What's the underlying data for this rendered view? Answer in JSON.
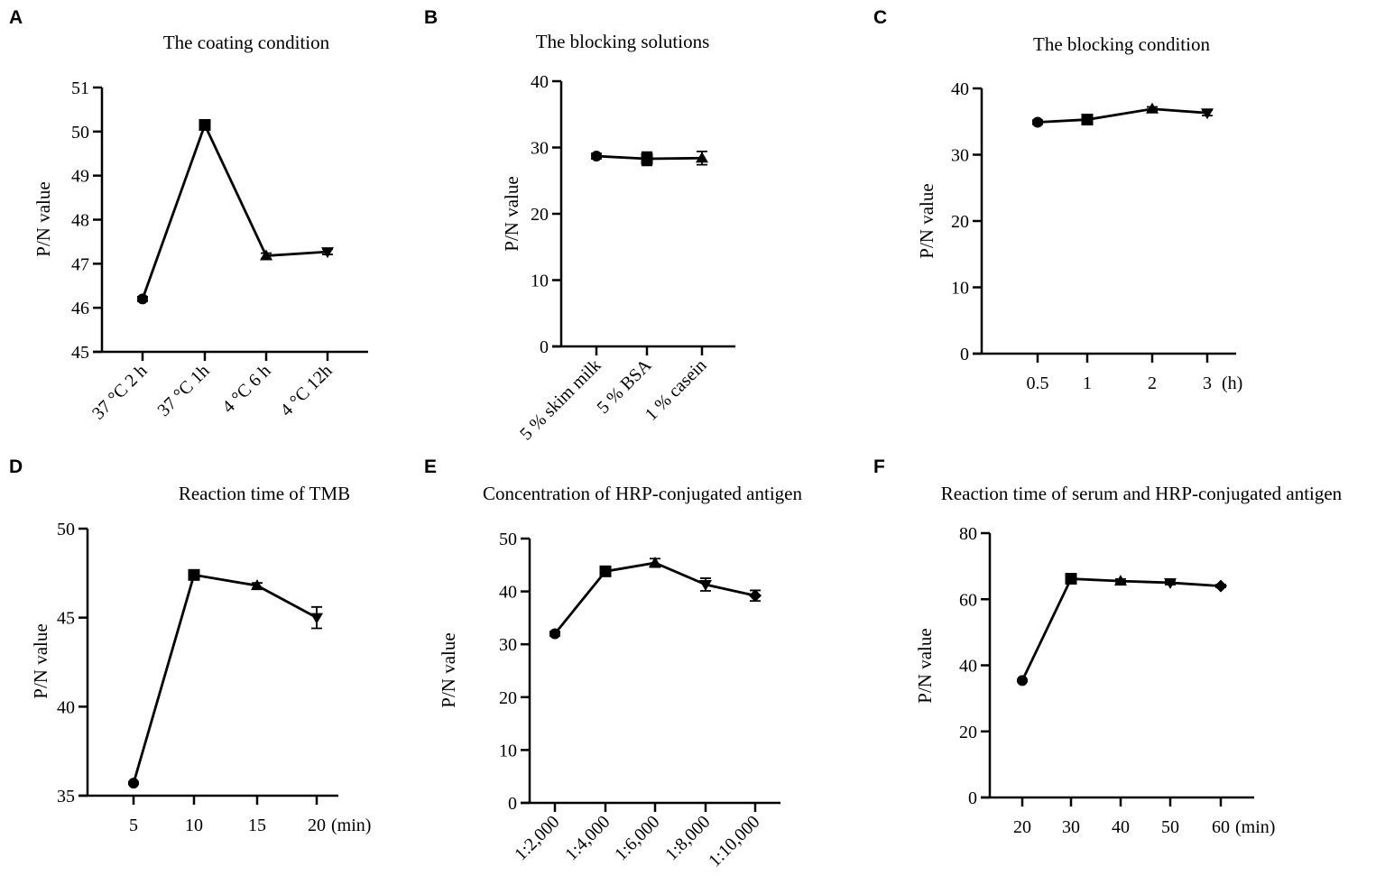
{
  "chart_data": [
    {
      "panel": "A",
      "type": "line",
      "title": "The coating condition",
      "ylabel": "P/N value",
      "xlabel": "",
      "unit": "",
      "categories": [
        "37 °C 2 h",
        "37 °C 1h",
        "4 °C 6 h",
        "4 °C 12h"
      ],
      "values": [
        46.2,
        50.15,
        47.18,
        47.27
      ],
      "errors": [
        0.05,
        0.05,
        0.06,
        0.06
      ],
      "markers": [
        "circle",
        "square",
        "triangle-up",
        "triangle-down"
      ],
      "ylim": [
        45,
        51
      ],
      "yticks": [
        45,
        46,
        47,
        48,
        49,
        50,
        51
      ]
    },
    {
      "panel": "B",
      "type": "line",
      "title": "The blocking solutions",
      "ylabel": "P/N value",
      "xlabel": "",
      "unit": "",
      "categories": [
        "5 % skim milk",
        "5 % BSA",
        "1 % casein"
      ],
      "values": [
        28.7,
        28.3,
        28.4
      ],
      "errors": [
        0.4,
        1.0,
        1.0
      ],
      "markers": [
        "circle",
        "square",
        "triangle-up"
      ],
      "ylim": [
        0,
        40
      ],
      "yticks": [
        0,
        10,
        20,
        30,
        40
      ]
    },
    {
      "panel": "C",
      "type": "line",
      "title": "The blocking condition",
      "ylabel": "P/N value",
      "xlabel": "",
      "unit": "(h)",
      "categories": [
        "0.5",
        "1",
        "2",
        "3"
      ],
      "values": [
        34.9,
        35.3,
        36.9,
        36.3
      ],
      "errors": [
        0.3,
        0.3,
        0.3,
        0.4
      ],
      "markers": [
        "circle",
        "square",
        "triangle-up",
        "triangle-down"
      ],
      "ylim": [
        0,
        40
      ],
      "yticks": [
        0,
        10,
        20,
        30,
        40
      ]
    },
    {
      "panel": "D",
      "type": "line",
      "title": "Reaction time of  TMB",
      "ylabel": "P/N value",
      "xlabel": "",
      "unit": "(min)",
      "categories": [
        "5",
        "10",
        "15",
        "20"
      ],
      "values": [
        35.7,
        47.4,
        46.8,
        45.0
      ],
      "errors": [
        0.05,
        0.1,
        0.15,
        0.6
      ],
      "markers": [
        "circle",
        "square",
        "triangle-up",
        "triangle-down"
      ],
      "ylim": [
        35,
        50
      ],
      "yticks": [
        35,
        40,
        45,
        50
      ]
    },
    {
      "panel": "E",
      "type": "line",
      "title": "Concentration of  HRP-conjugated antigen",
      "ylabel": "P/N value",
      "xlabel": "",
      "unit": "",
      "categories": [
        "1:2,000",
        "1:4,000",
        "1:6,000",
        "1:8,000",
        "1:10,000"
      ],
      "values": [
        32.0,
        43.8,
        45.4,
        41.3,
        39.2
      ],
      "errors": [
        0.4,
        0.6,
        0.8,
        1.2,
        1.0
      ],
      "markers": [
        "circle",
        "square",
        "triangle-up",
        "triangle-down",
        "diamond"
      ],
      "ylim": [
        0,
        50
      ],
      "yticks": [
        0,
        10,
        20,
        30,
        40,
        50
      ]
    },
    {
      "panel": "F",
      "type": "line",
      "title": "Reaction time of serum and HRP-conjugated antigen",
      "ylabel": "P/N value",
      "xlabel": "",
      "unit": "(min)",
      "categories": [
        "20",
        "30",
        "40",
        "50",
        "60"
      ],
      "values": [
        35.4,
        66.2,
        65.5,
        65.0,
        64.0
      ],
      "errors": [
        0.3,
        0.5,
        0.6,
        0.6,
        0.4
      ],
      "markers": [
        "circle",
        "square",
        "triangle-up",
        "triangle-down",
        "diamond"
      ],
      "ylim": [
        0,
        80
      ],
      "yticks": [
        0,
        20,
        40,
        60,
        80
      ]
    }
  ]
}
